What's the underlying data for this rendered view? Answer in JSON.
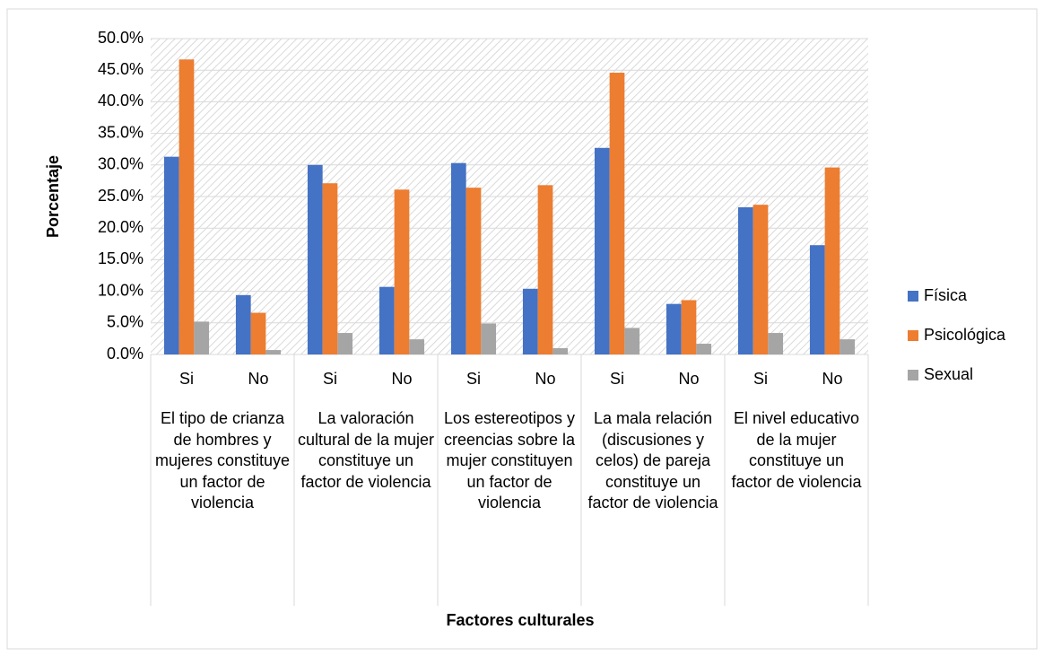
{
  "chart_data": {
    "type": "bar",
    "x_label": "Factores culturales",
    "y_label": "Porcentaje",
    "categories": [
      "Si",
      "No",
      "Si",
      "No",
      "Si",
      "No",
      "Si",
      "No",
      "Si",
      "No"
    ],
    "groups": [
      "El tipo de crianza de hombres y mujeres constituye un factor de violencia",
      "La valoración cultural de la mujer constituye un factor de violencia",
      "Los estereotipos y creencias sobre la mujer constituyen un factor de violencia",
      "La mala relación (discusiones y celos) de pareja constituye un factor de violencia",
      "El nivel educativo de la mujer constituye un factor de violencia"
    ],
    "series": [
      {
        "name": "Física",
        "color": "#4472c4",
        "values": [
          31.3,
          9.4,
          30.0,
          10.7,
          30.3,
          10.4,
          32.7,
          8.0,
          23.3,
          17.3
        ]
      },
      {
        "name": "Psicológica",
        "color": "#ed7d31",
        "values": [
          46.7,
          6.6,
          27.1,
          26.1,
          26.4,
          26.8,
          44.6,
          8.6,
          23.7,
          29.6
        ]
      },
      {
        "name": "Sexual",
        "color": "#a5a5a5",
        "values": [
          5.2,
          0.7,
          3.4,
          2.4,
          4.9,
          1.0,
          4.2,
          1.7,
          3.4,
          2.4
        ]
      }
    ],
    "ylim": [
      0,
      50
    ],
    "yticks": [
      {
        "value": 0,
        "label": "0.0%"
      },
      {
        "value": 5,
        "label": "5.0%"
      },
      {
        "value": 10,
        "label": "10.0%"
      },
      {
        "value": 15,
        "label": "15.0%"
      },
      {
        "value": 20,
        "label": "20.0%"
      },
      {
        "value": 25,
        "label": "25.0%"
      },
      {
        "value": 30,
        "label": "30.0%"
      },
      {
        "value": 35,
        "label": "35.0%"
      },
      {
        "value": 40,
        "label": "40.0%"
      },
      {
        "value": 45,
        "label": "45.0%"
      },
      {
        "value": 50,
        "label": "50.0%"
      }
    ],
    "grid": true,
    "legend": "right"
  }
}
